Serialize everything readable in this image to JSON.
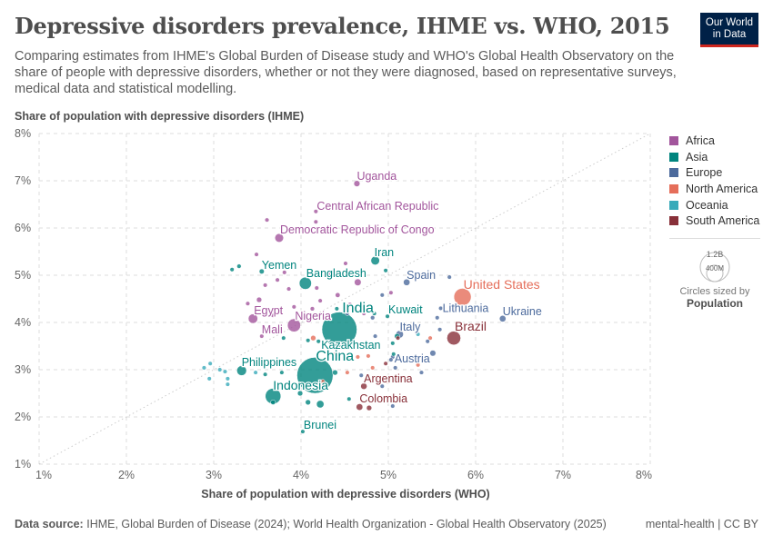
{
  "title": "Depressive disorders prevalence, IHME vs. WHO, 2015",
  "subtitle": "Comparing estimates from IHME's Global Burden of Disease study and WHO's Global Health Observatory on the share of people with depressive disorders, whether or not they were diagnosed, based on representative surveys, medical data and statistical modelling.",
  "logo": {
    "line1": "Our World",
    "line2": "in Data"
  },
  "footer": {
    "source_label": "Data source:",
    "source": "IHME, Global Burden of Disease (2024); World Health Organization - Global Health Observatory (2025)",
    "right": "mental-health | CC BY"
  },
  "legend": {
    "items": [
      {
        "label": "Africa",
        "color": "#a2559c"
      },
      {
        "label": "Asia",
        "color": "#00847e"
      },
      {
        "label": "Europe",
        "color": "#4c6a9c"
      },
      {
        "label": "North America",
        "color": "#e56e5a"
      },
      {
        "label": "Oceania",
        "color": "#38aaba"
      },
      {
        "label": "South America",
        "color": "#883039"
      }
    ],
    "size_big": "1.2B",
    "size_small": "400M",
    "size_caption": "Circles sized by",
    "size_var": "Population"
  },
  "chart_data": {
    "type": "scatter",
    "xlabel": "Share of population with depressive disorders (WHO)",
    "ylabel": "Share of population with depressive disorders (IHME)",
    "xlim": [
      1,
      8
    ],
    "ylim": [
      1,
      8
    ],
    "xticks": [
      "1%",
      "2%",
      "3%",
      "4%",
      "5%",
      "6%",
      "7%",
      "8%"
    ],
    "yticks": [
      "1%",
      "2%",
      "3%",
      "4%",
      "5%",
      "6%",
      "7%",
      "8%"
    ],
    "grid": true,
    "diagonal_reference_line": true,
    "legend_position": "right",
    "points": [
      {
        "label": "Uganda",
        "region": "Africa",
        "x": 4.64,
        "y": 6.94,
        "pop": 40
      },
      {
        "label": "Central African Republic",
        "region": "Africa",
        "x": 4.17,
        "y": 6.35,
        "pop": 5
      },
      {
        "label": "Democratic Republic of Congo",
        "region": "Africa",
        "x": 3.75,
        "y": 5.79,
        "pop": 80
      },
      {
        "label": "Iran",
        "region": "Asia",
        "x": 4.85,
        "y": 5.31,
        "pop": 80
      },
      {
        "label": "Yemen",
        "region": "Asia",
        "x": 3.55,
        "y": 5.08,
        "pop": 27
      },
      {
        "label": "Bangladesh",
        "region": "Asia",
        "x": 4.05,
        "y": 4.83,
        "pop": 160
      },
      {
        "label": "Spain",
        "region": "Europe",
        "x": 5.21,
        "y": 4.85,
        "pop": 46
      },
      {
        "label": "United States",
        "region": "North America",
        "x": 5.85,
        "y": 4.54,
        "pop": 320
      },
      {
        "label": "Lithuania",
        "region": "Europe",
        "x": 5.6,
        "y": 4.3,
        "pop": 3
      },
      {
        "label": "Ukraine",
        "region": "Europe",
        "x": 6.31,
        "y": 4.08,
        "pop": 45
      },
      {
        "label": "India",
        "region": "Asia",
        "x": 4.44,
        "y": 3.85,
        "pop": 1320
      },
      {
        "label": "Kazakhstan",
        "region": "Asia",
        "x": 4.2,
        "y": 3.6,
        "pop": 18
      },
      {
        "label": "China",
        "region": "Asia",
        "x": 4.16,
        "y": 2.88,
        "pop": 1400
      },
      {
        "label": "Indonesia",
        "region": "Asia",
        "x": 3.68,
        "y": 2.44,
        "pop": 260
      },
      {
        "label": "Philippines",
        "region": "Asia",
        "x": 3.32,
        "y": 2.98,
        "pop": 102
      },
      {
        "label": "Egypt",
        "region": "Africa",
        "x": 3.45,
        "y": 4.08,
        "pop": 95
      },
      {
        "label": "Nigeria",
        "region": "Africa",
        "x": 3.92,
        "y": 3.94,
        "pop": 185
      },
      {
        "label": "Mali",
        "region": "Africa",
        "x": 3.55,
        "y": 3.71,
        "pop": 18
      },
      {
        "label": "Kuwait",
        "region": "Asia",
        "x": 4.99,
        "y": 4.13,
        "pop": 4
      },
      {
        "label": "Italy",
        "region": "Europe",
        "x": 5.13,
        "y": 3.75,
        "pop": 60
      },
      {
        "label": "Brazil",
        "region": "South America",
        "x": 5.75,
        "y": 3.67,
        "pop": 205
      },
      {
        "label": "Austria",
        "region": "Europe",
        "x": 5.05,
        "y": 3.27,
        "pop": 9
      },
      {
        "label": "Argentina",
        "region": "South America",
        "x": 4.72,
        "y": 2.65,
        "pop": 43
      },
      {
        "label": "Colombia",
        "region": "South America",
        "x": 4.67,
        "y": 2.21,
        "pop": 47
      },
      {
        "label": "Brunei",
        "region": "Asia",
        "x": 4.02,
        "y": 1.69,
        "pop": 0.4
      },
      {
        "region": "Africa",
        "x": 3.61,
        "y": 6.17,
        "pop": 12
      },
      {
        "region": "Africa",
        "x": 4.17,
        "y": 6.13,
        "pop": 5
      },
      {
        "region": "Africa",
        "x": 3.49,
        "y": 5.44,
        "pop": 5
      },
      {
        "region": "Africa",
        "x": 3.81,
        "y": 5.06,
        "pop": 8
      },
      {
        "region": "Africa",
        "x": 3.59,
        "y": 4.79,
        "pop": 10
      },
      {
        "region": "Africa",
        "x": 3.52,
        "y": 4.48,
        "pop": 30
      },
      {
        "region": "Africa",
        "x": 3.39,
        "y": 4.4,
        "pop": 6
      },
      {
        "region": "Africa",
        "x": 3.86,
        "y": 4.71,
        "pop": 12
      },
      {
        "region": "Africa",
        "x": 4.18,
        "y": 4.73,
        "pop": 14
      },
      {
        "region": "Africa",
        "x": 4.51,
        "y": 5.25,
        "pop": 8
      },
      {
        "region": "Africa",
        "x": 4.65,
        "y": 4.85,
        "pop": 50
      },
      {
        "region": "Africa",
        "x": 4.13,
        "y": 4.29,
        "pop": 20
      },
      {
        "region": "Africa",
        "x": 3.92,
        "y": 4.33,
        "pop": 6
      },
      {
        "region": "Africa",
        "x": 4.22,
        "y": 4.46,
        "pop": 15
      },
      {
        "region": "Africa",
        "x": 4.33,
        "y": 5.02,
        "pop": 4
      },
      {
        "region": "Africa",
        "x": 4.72,
        "y": 4.19,
        "pop": 8
      },
      {
        "region": "Africa",
        "x": 3.73,
        "y": 4.9,
        "pop": 3
      },
      {
        "region": "Africa",
        "x": 5.03,
        "y": 4.63,
        "pop": 5
      },
      {
        "region": "Africa",
        "x": 4.42,
        "y": 4.58,
        "pop": 25
      },
      {
        "region": "Africa",
        "x": 4.56,
        "y": 4.38,
        "pop": 6
      },
      {
        "region": "Africa",
        "x": 3.68,
        "y": 4.15,
        "pop": 4
      },
      {
        "region": "Asia",
        "x": 3.21,
        "y": 5.12,
        "pop": 12
      },
      {
        "region": "Asia",
        "x": 3.29,
        "y": 5.19,
        "pop": 20
      },
      {
        "region": "Asia",
        "x": 4.97,
        "y": 5.1,
        "pop": 4
      },
      {
        "region": "Asia",
        "x": 4.84,
        "y": 4.19,
        "pop": 5
      },
      {
        "region": "Asia",
        "x": 5.1,
        "y": 3.71,
        "pop": 30
      },
      {
        "region": "Asia",
        "x": 5.05,
        "y": 3.56,
        "pop": 6
      },
      {
        "region": "Asia",
        "x": 5.06,
        "y": 3.33,
        "pop": 4
      },
      {
        "region": "Asia",
        "x": 4.41,
        "y": 4.29,
        "pop": 9
      },
      {
        "region": "Asia",
        "x": 4.08,
        "y": 3.62,
        "pop": 5
      },
      {
        "region": "Asia",
        "x": 3.8,
        "y": 3.67,
        "pop": 6
      },
      {
        "region": "Asia",
        "x": 4.39,
        "y": 2.94,
        "pop": 30
      },
      {
        "region": "Asia",
        "x": 3.68,
        "y": 2.31,
        "pop": 25
      },
      {
        "region": "Asia",
        "x": 4.08,
        "y": 2.31,
        "pop": 30
      },
      {
        "region": "Asia",
        "x": 4.22,
        "y": 2.27,
        "pop": 60
      },
      {
        "region": "Asia",
        "x": 3.99,
        "y": 2.5,
        "pop": 30
      },
      {
        "region": "Asia",
        "x": 3.59,
        "y": 2.9,
        "pop": 4
      },
      {
        "region": "Asia",
        "x": 3.78,
        "y": 2.94,
        "pop": 3
      },
      {
        "region": "Asia",
        "x": 4.55,
        "y": 2.38,
        "pop": 3
      },
      {
        "region": "Oceania",
        "x": 2.89,
        "y": 3.04,
        "pop": 1
      },
      {
        "region": "Oceania",
        "x": 2.96,
        "y": 3.13,
        "pop": 1
      },
      {
        "region": "Oceania",
        "x": 2.95,
        "y": 2.81,
        "pop": 1
      },
      {
        "region": "Oceania",
        "x": 3.07,
        "y": 3.0,
        "pop": 1
      },
      {
        "region": "Oceania",
        "x": 3.13,
        "y": 2.96,
        "pop": 1
      },
      {
        "region": "Oceania",
        "x": 3.16,
        "y": 2.81,
        "pop": 1
      },
      {
        "region": "Oceania",
        "x": 3.16,
        "y": 2.69,
        "pop": 1
      },
      {
        "region": "Oceania",
        "x": 3.48,
        "y": 2.94,
        "pop": 1
      },
      {
        "region": "Oceania",
        "x": 5.34,
        "y": 3.75,
        "pop": 1
      },
      {
        "region": "Europe",
        "x": 4.82,
        "y": 4.1,
        "pop": 20
      },
      {
        "region": "Europe",
        "x": 4.93,
        "y": 4.58,
        "pop": 4
      },
      {
        "region": "Europe",
        "x": 5.7,
        "y": 4.96,
        "pop": 3
      },
      {
        "region": "Europe",
        "x": 5.56,
        "y": 4.1,
        "pop": 3
      },
      {
        "region": "Europe",
        "x": 5.51,
        "y": 3.35,
        "pop": 38
      },
      {
        "region": "Europe",
        "x": 5.08,
        "y": 3.04,
        "pop": 5
      },
      {
        "region": "Europe",
        "x": 5.38,
        "y": 2.94,
        "pop": 4
      },
      {
        "region": "Europe",
        "x": 5.03,
        "y": 3.21,
        "pop": 5
      },
      {
        "region": "Europe",
        "x": 5.05,
        "y": 2.23,
        "pop": 6
      },
      {
        "region": "Europe",
        "x": 4.93,
        "y": 2.65,
        "pop": 3
      },
      {
        "region": "Europe",
        "x": 4.69,
        "y": 2.88,
        "pop": 4
      },
      {
        "region": "Europe",
        "x": 4.57,
        "y": 3.23,
        "pop": 3
      },
      {
        "region": "Europe",
        "x": 4.53,
        "y": 4.19,
        "pop": 4
      },
      {
        "region": "Europe",
        "x": 4.85,
        "y": 3.71,
        "pop": 5
      },
      {
        "region": "Europe",
        "x": 5.59,
        "y": 3.85,
        "pop": 3
      },
      {
        "region": "Europe",
        "x": 5.45,
        "y": 3.6,
        "pop": 4
      },
      {
        "region": "North America",
        "x": 4.14,
        "y": 3.67,
        "pop": 30
      },
      {
        "region": "North America",
        "x": 4.53,
        "y": 2.94,
        "pop": 3
      },
      {
        "region": "North America",
        "x": 4.65,
        "y": 3.27,
        "pop": 4
      },
      {
        "region": "North America",
        "x": 4.82,
        "y": 3.04,
        "pop": 3
      },
      {
        "region": "North America",
        "x": 4.77,
        "y": 3.29,
        "pop": 3
      },
      {
        "region": "North America",
        "x": 5.48,
        "y": 3.67,
        "pop": 3
      },
      {
        "region": "North America",
        "x": 4.98,
        "y": 2.75,
        "pop": 3
      },
      {
        "region": "North America",
        "x": 5.34,
        "y": 3.1,
        "pop": 2
      },
      {
        "region": "North America",
        "x": 4.39,
        "y": 3.33,
        "pop": 3
      },
      {
        "region": "North America",
        "x": 4.25,
        "y": 2.75,
        "pop": 3
      },
      {
        "region": "South America",
        "x": 4.78,
        "y": 2.19,
        "pop": 30
      },
      {
        "region": "South America",
        "x": 5.11,
        "y": 3.67,
        "pop": 5
      },
      {
        "region": "South America",
        "x": 4.97,
        "y": 3.13,
        "pop": 3
      },
      {
        "region": "South America",
        "x": 4.8,
        "y": 2.75,
        "pop": 4
      }
    ]
  }
}
